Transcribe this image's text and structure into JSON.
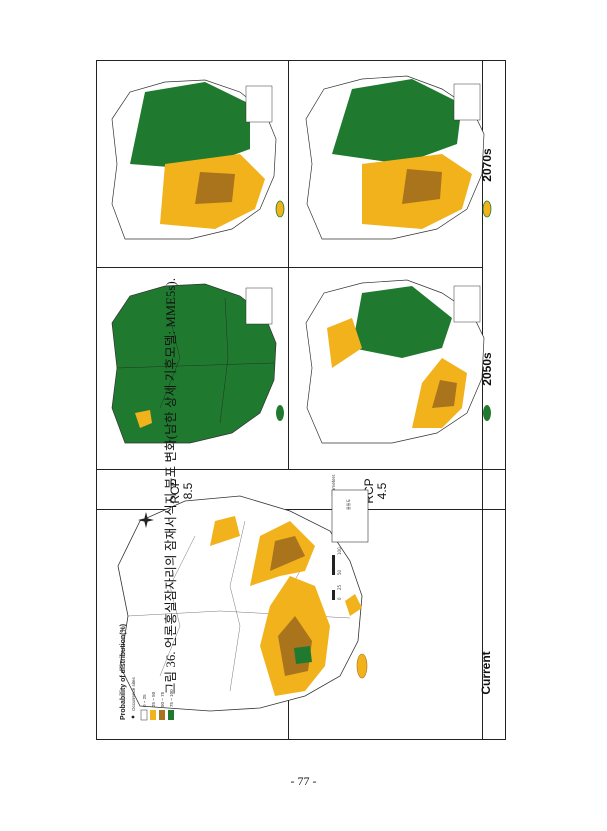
{
  "figure": {
    "columns": {
      "current": "Current",
      "y2050": "2050s",
      "y2070": "2070s"
    },
    "rows": {
      "rcp45": "RCP\n4.5",
      "rcp85": "RCP\n8.5"
    },
    "legend": {
      "title": "Probability of distribution(%)",
      "occurrence_label": "Occurrence sites",
      "classes": [
        {
          "label": "0 ~ 25",
          "color": "#ffffff"
        },
        {
          "label": "25 ~ 50",
          "color": "#f2b21c"
        },
        {
          "label": "50 ~ 75",
          "color": "#a9741b"
        },
        {
          "label": "75 ~ 100",
          "color": "#1f7a2f"
        }
      ],
      "scale_ticks": [
        "0",
        "25",
        "50",
        "100",
        "150",
        "200"
      ],
      "scale_unit": "Kilometers"
    },
    "inset_label": "울릉도",
    "inset_label_2": "독도"
  },
  "caption": "그림 36. 언론홍실잠자리의 잠재서식지 분포 변화(남한 상세 기후모델: MME5s).",
  "page_number": "- 77 -",
  "colors": {
    "low": "#ffffff",
    "mid": "#f2b21c",
    "high": "#a9741b",
    "very_high": "#1f7a2f",
    "border": "#333333"
  }
}
